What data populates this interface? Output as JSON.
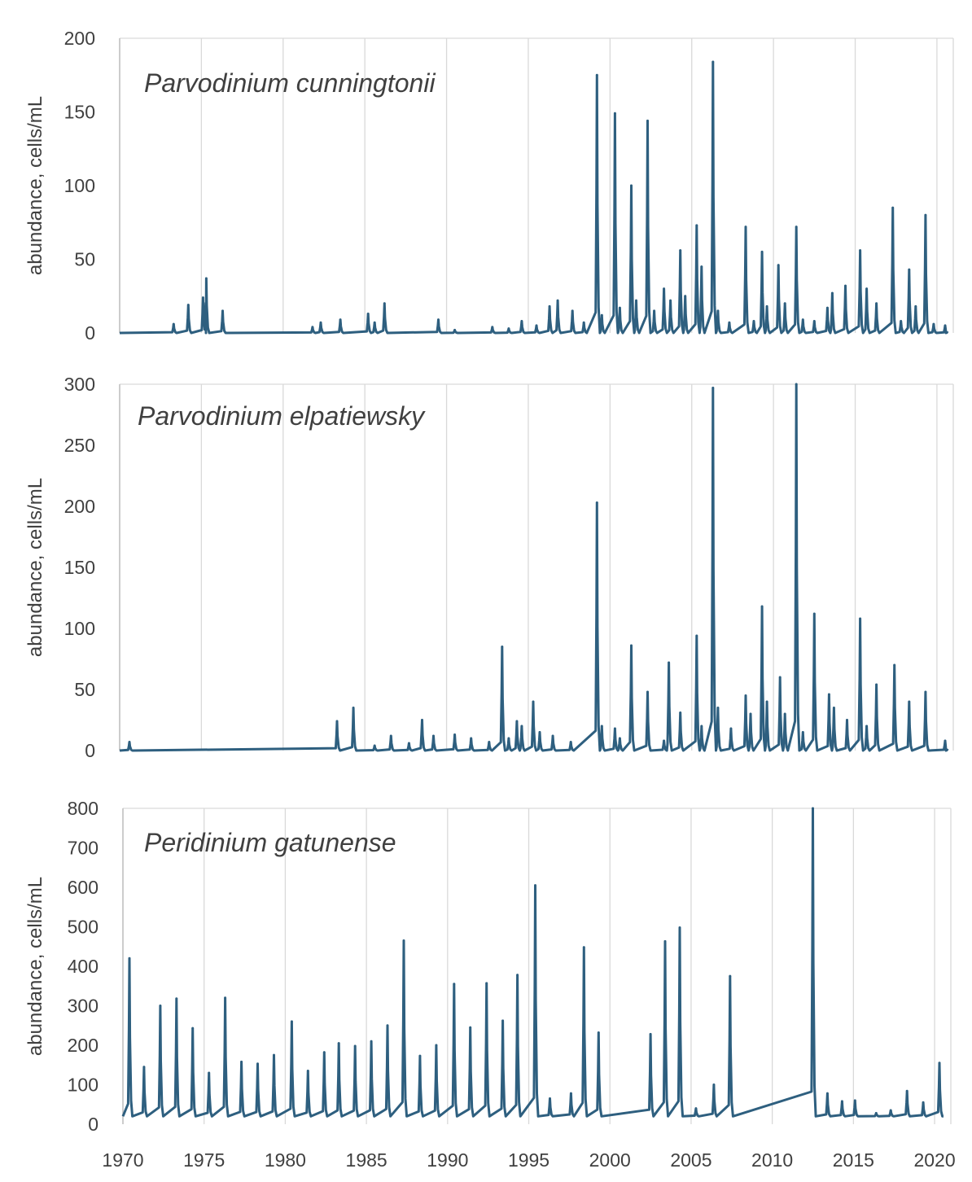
{
  "colors": {
    "series": "#2e5f7f",
    "grid": "#d9d9d9",
    "text": "#404040"
  },
  "chart_data": [
    {
      "type": "line",
      "title": "Parvodinium cunningtonii",
      "ylabel": "abundance, cells/mL",
      "xlabel": "",
      "xlim": [
        1970,
        2021
      ],
      "ylim": [
        0,
        200
      ],
      "yticks": [
        "0",
        "50",
        "100",
        "150",
        "200"
      ],
      "xticks": [
        "1970",
        "1975",
        "1980",
        "1985",
        "1990",
        "1995",
        "2000",
        "2005",
        "2010",
        "2015",
        "2020"
      ],
      "show_xtick_labels": false,
      "grid": true,
      "baseline": [
        [
          1970,
          0
        ],
        [
          2021,
          0
        ]
      ],
      "peaks": [
        [
          1973.3,
          6
        ],
        [
          1974.2,
          19
        ],
        [
          1975.1,
          24
        ],
        [
          1975.3,
          37
        ],
        [
          1976.3,
          15
        ],
        [
          1981.8,
          4
        ],
        [
          1982.3,
          7
        ],
        [
          1983.5,
          9
        ],
        [
          1985.2,
          13
        ],
        [
          1985.6,
          7
        ],
        [
          1986.2,
          20
        ],
        [
          1989.5,
          9
        ],
        [
          1990.5,
          2
        ],
        [
          1992.8,
          4
        ],
        [
          1993.8,
          3
        ],
        [
          1994.6,
          8
        ],
        [
          1995.5,
          5
        ],
        [
          1996.3,
          18
        ],
        [
          1996.8,
          22
        ],
        [
          1997.7,
          15
        ],
        [
          1998.4,
          7
        ],
        [
          1999.2,
          175
        ],
        [
          1999.5,
          12
        ],
        [
          2000.3,
          149
        ],
        [
          2000.6,
          17
        ],
        [
          2001.3,
          100
        ],
        [
          2001.6,
          22
        ],
        [
          2002.3,
          144
        ],
        [
          2002.7,
          15
        ],
        [
          2003.3,
          30
        ],
        [
          2003.7,
          22
        ],
        [
          2004.3,
          56
        ],
        [
          2004.6,
          25
        ],
        [
          2005.3,
          73
        ],
        [
          2005.6,
          45
        ],
        [
          2006.3,
          184
        ],
        [
          2006.6,
          15
        ],
        [
          2007.3,
          7
        ],
        [
          2008.3,
          72
        ],
        [
          2008.8,
          8
        ],
        [
          2009.3,
          55
        ],
        [
          2009.6,
          18
        ],
        [
          2010.3,
          46
        ],
        [
          2010.7,
          20
        ],
        [
          2011.4,
          72
        ],
        [
          2011.8,
          9
        ],
        [
          2012.5,
          8
        ],
        [
          2013.3,
          17
        ],
        [
          2013.6,
          27
        ],
        [
          2014.4,
          32
        ],
        [
          2015.3,
          56
        ],
        [
          2015.7,
          30
        ],
        [
          2016.3,
          20
        ],
        [
          2017.3,
          85
        ],
        [
          2017.8,
          8
        ],
        [
          2018.3,
          43
        ],
        [
          2018.7,
          18
        ],
        [
          2019.3,
          80
        ],
        [
          2019.8,
          6
        ],
        [
          2020.5,
          5
        ]
      ]
    },
    {
      "type": "line",
      "title": "Parvodinium elpatiewsky",
      "ylabel": "abundance, cells/mL",
      "xlabel": "",
      "xlim": [
        1970,
        2021
      ],
      "ylim": [
        0,
        300
      ],
      "yticks": [
        "0",
        "50",
        "100",
        "150",
        "200",
        "250",
        "300"
      ],
      "xticks": [
        "1970",
        "1975",
        "1980",
        "1985",
        "1990",
        "1995",
        "2000",
        "2005",
        "2010",
        "2015",
        "2020"
      ],
      "show_xtick_labels": false,
      "grid": true,
      "baseline": [
        [
          1970,
          0
        ],
        [
          2021,
          0
        ]
      ],
      "peaks": [
        [
          1970.6,
          7
        ],
        [
          1983.3,
          24
        ],
        [
          1984.3,
          35
        ],
        [
          1985.6,
          4
        ],
        [
          1986.6,
          12
        ],
        [
          1987.7,
          6
        ],
        [
          1988.5,
          25
        ],
        [
          1989.2,
          12
        ],
        [
          1990.5,
          13
        ],
        [
          1991.5,
          10
        ],
        [
          1992.6,
          7
        ],
        [
          1993.4,
          85
        ],
        [
          1993.8,
          10
        ],
        [
          1994.3,
          24
        ],
        [
          1994.6,
          20
        ],
        [
          1995.3,
          40
        ],
        [
          1995.7,
          15
        ],
        [
          1996.5,
          12
        ],
        [
          1997.6,
          7
        ],
        [
          1999.2,
          203
        ],
        [
          1999.5,
          20
        ],
        [
          2000.3,
          18
        ],
        [
          2000.6,
          10
        ],
        [
          2001.3,
          86
        ],
        [
          2002.3,
          48
        ],
        [
          2003.3,
          8
        ],
        [
          2003.6,
          72
        ],
        [
          2004.3,
          31
        ],
        [
          2005.3,
          94
        ],
        [
          2005.6,
          20
        ],
        [
          2006.3,
          297
        ],
        [
          2006.6,
          35
        ],
        [
          2007.4,
          18
        ],
        [
          2008.3,
          45
        ],
        [
          2008.6,
          30
        ],
        [
          2009.3,
          118
        ],
        [
          2009.6,
          40
        ],
        [
          2010.4,
          60
        ],
        [
          2010.7,
          30
        ],
        [
          2011.4,
          300
        ],
        [
          2011.8,
          15
        ],
        [
          2012.5,
          112
        ],
        [
          2013.4,
          46
        ],
        [
          2013.7,
          35
        ],
        [
          2014.5,
          25
        ],
        [
          2015.3,
          108
        ],
        [
          2015.7,
          20
        ],
        [
          2016.3,
          54
        ],
        [
          2017.4,
          70
        ],
        [
          2018.3,
          40
        ],
        [
          2019.3,
          48
        ],
        [
          2020.5,
          8
        ]
      ]
    },
    {
      "type": "line",
      "title": "Peridinium gatunense",
      "ylabel": "abundance, cells/mL",
      "xlabel": "",
      "xlim": [
        1970,
        2021
      ],
      "ylim": [
        0,
        800
      ],
      "yticks": [
        "0",
        "100",
        "200",
        "300",
        "400",
        "500",
        "600",
        "700",
        "800"
      ],
      "xticks": [
        "1970",
        "1975",
        "1980",
        "1985",
        "1990",
        "1995",
        "2000",
        "2005",
        "2010",
        "2015",
        "2020"
      ],
      "show_xtick_labels": true,
      "grid": true,
      "baseline": [
        [
          1970,
          20
        ],
        [
          2021,
          20
        ]
      ],
      "peaks": [
        [
          1970.4,
          420
        ],
        [
          1971.3,
          145
        ],
        [
          1972.3,
          300
        ],
        [
          1973.3,
          318
        ],
        [
          1974.3,
          243
        ],
        [
          1975.3,
          130
        ],
        [
          1976.3,
          320
        ],
        [
          1977.3,
          158
        ],
        [
          1978.3,
          153
        ],
        [
          1979.3,
          175
        ],
        [
          1980.4,
          260
        ],
        [
          1981.4,
          135
        ],
        [
          1982.4,
          182
        ],
        [
          1983.3,
          205
        ],
        [
          1984.3,
          198
        ],
        [
          1985.3,
          210
        ],
        [
          1986.3,
          250
        ],
        [
          1987.3,
          465
        ],
        [
          1988.3,
          173
        ],
        [
          1989.3,
          200
        ],
        [
          1990.4,
          355
        ],
        [
          1991.4,
          245
        ],
        [
          1992.4,
          357
        ],
        [
          1993.4,
          262
        ],
        [
          1994.3,
          378
        ],
        [
          1995.4,
          605
        ],
        [
          1996.3,
          65
        ],
        [
          1997.6,
          78
        ],
        [
          1998.4,
          448
        ],
        [
          1999.3,
          232
        ],
        [
          2002.5,
          228
        ],
        [
          2003.4,
          463
        ],
        [
          2004.3,
          498
        ],
        [
          2005.3,
          40
        ],
        [
          2006.4,
          100
        ],
        [
          2007.4,
          375
        ],
        [
          2012.5,
          800
        ],
        [
          2013.4,
          78
        ],
        [
          2014.3,
          58
        ],
        [
          2015.1,
          60
        ],
        [
          2016.4,
          28
        ],
        [
          2017.3,
          35
        ],
        [
          2018.3,
          84
        ],
        [
          2019.3,
          55
        ],
        [
          2020.3,
          155
        ]
      ]
    }
  ]
}
